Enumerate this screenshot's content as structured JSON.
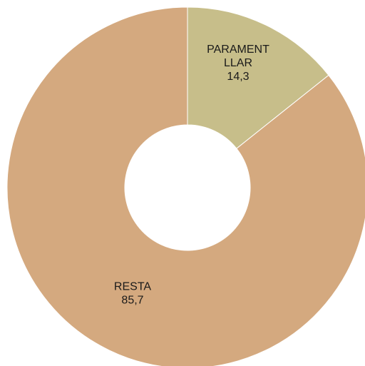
{
  "chart_data": {
    "type": "pie",
    "variant": "donut",
    "slices": [
      {
        "label_lines": [
          "PARAMENT",
          "LLAR"
        ],
        "value": 14.3,
        "value_text": "14,3",
        "color": "#C7BE8A"
      },
      {
        "label_lines": [
          "RESTA"
        ],
        "value": 85.7,
        "value_text": "85,7",
        "color": "#D4A97F"
      }
    ],
    "start_angle": "12 o'clock",
    "direction": "clockwise",
    "legend": "none"
  }
}
